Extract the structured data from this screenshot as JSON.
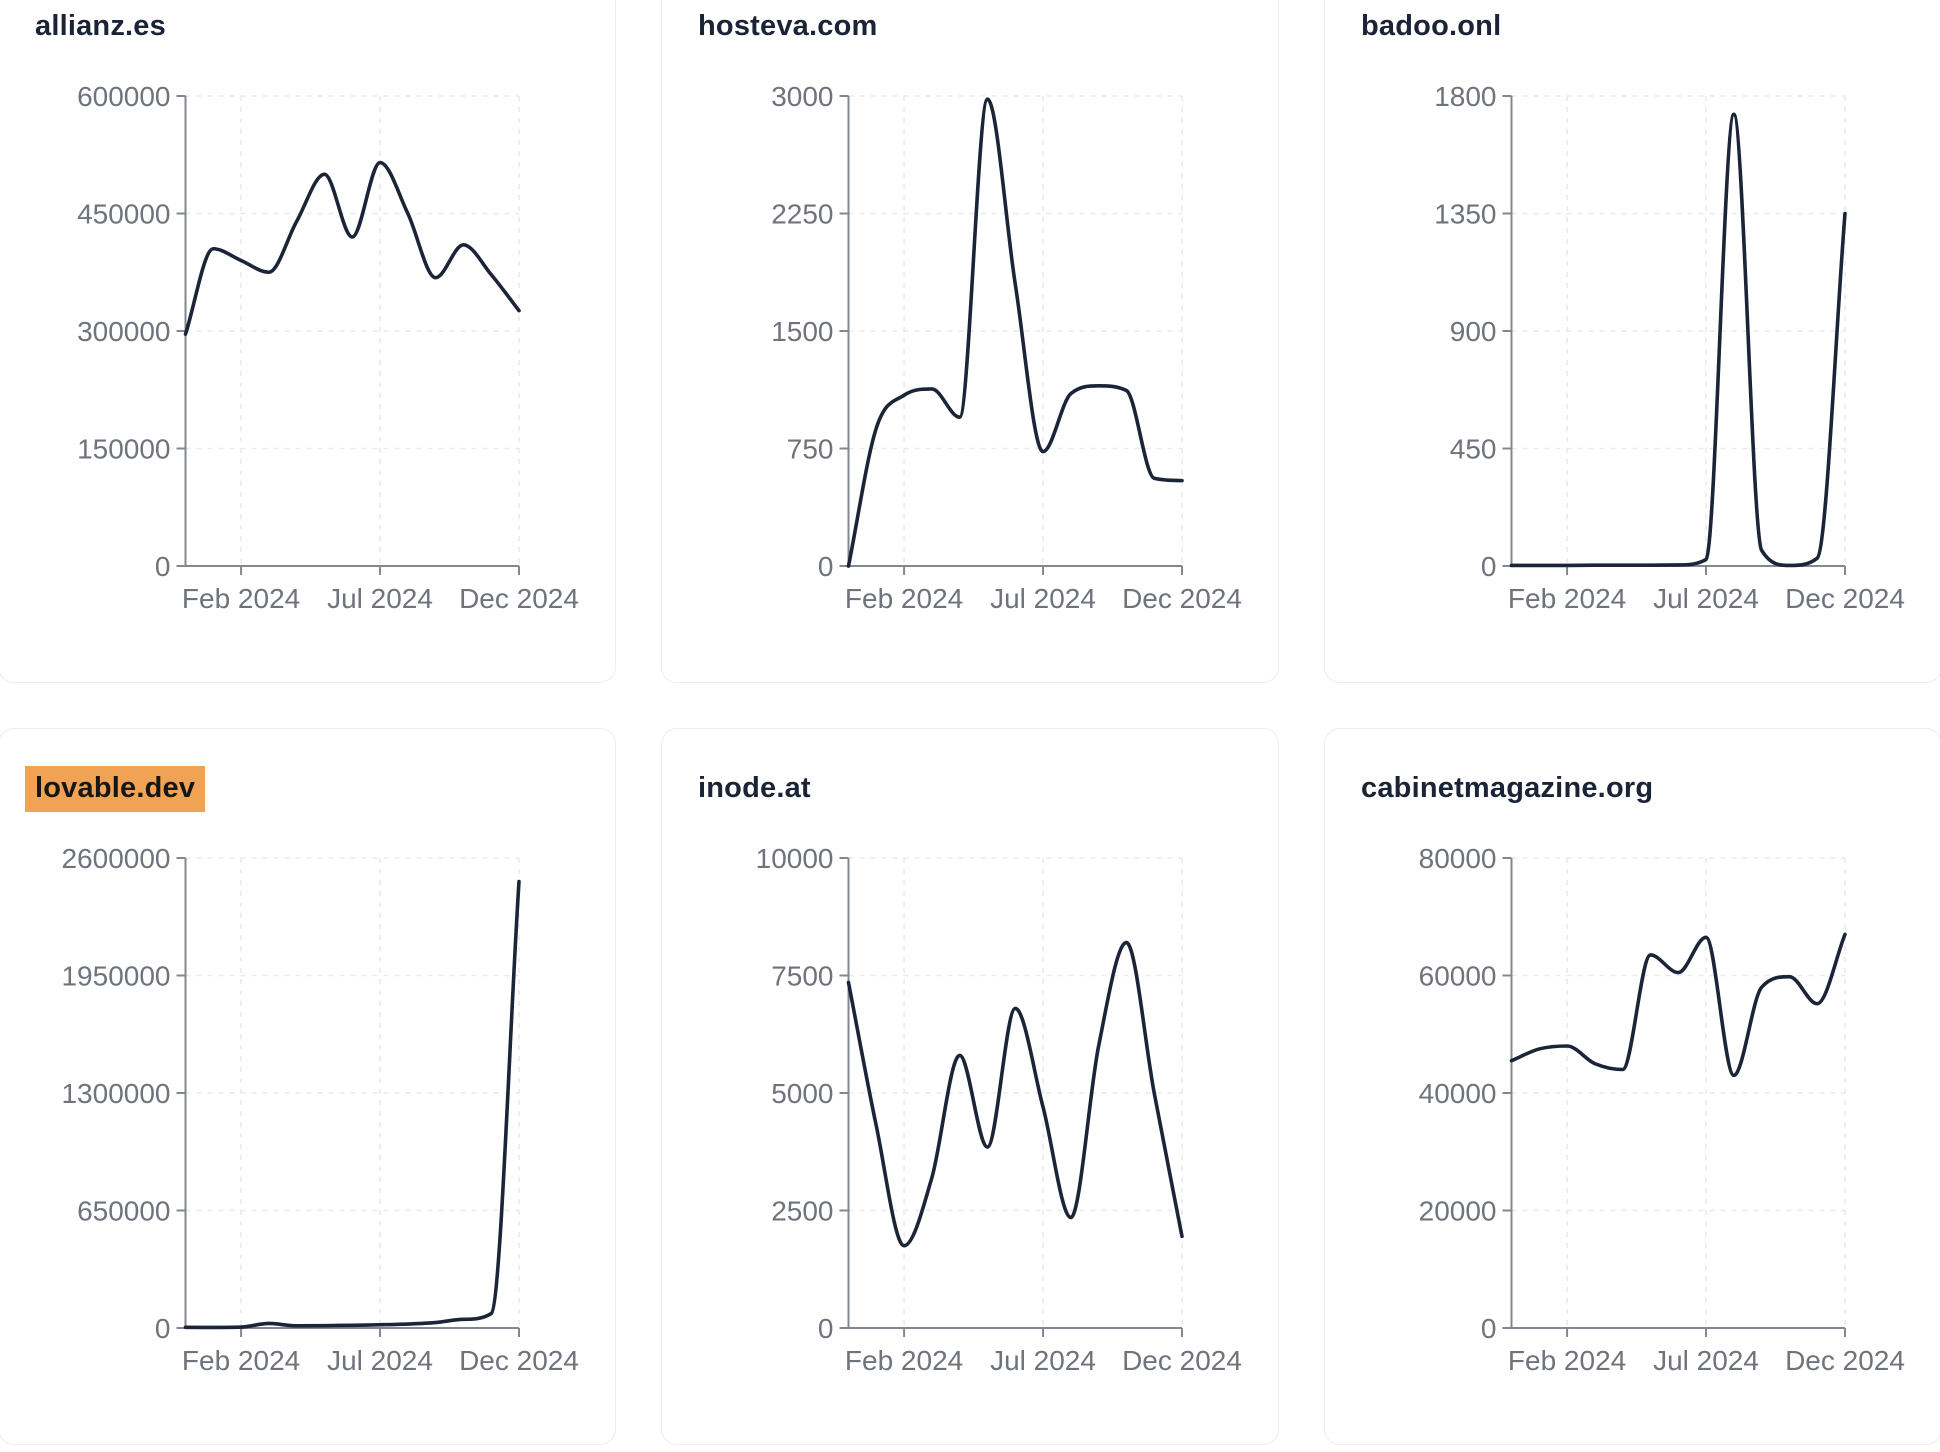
{
  "style": {
    "page_background": "#ffffff",
    "card_background": "#ffffff",
    "card_border_color": "#e9edf4",
    "title_color": "#1b2337",
    "line_color": "#1c2438",
    "tick_label_color": "#6e737c",
    "axis_color": "#83878f",
    "grid_color": "#e9eaef",
    "highlight_color": "#f0a355",
    "highlight_text_color": "#161616"
  },
  "chart_data": [
    {
      "type": "line",
      "title": "allianz.es",
      "title_highlighted": false,
      "x": [
        "Dec 2023",
        "Jan 2024",
        "Feb 2024",
        "Mar 2024",
        "Apr 2024",
        "May 2024",
        "Jun 2024",
        "Jul 2024",
        "Aug 2024",
        "Sep 2024",
        "Oct 2024",
        "Nov 2024",
        "Dec 2024"
      ],
      "values": [
        296000,
        405000,
        390000,
        375000,
        440000,
        500000,
        420000,
        515000,
        450000,
        368000,
        410000,
        372000,
        326000
      ],
      "y_ticks": [
        0,
        150000,
        300000,
        450000,
        600000
      ],
      "ylim": [
        0,
        600000
      ],
      "x_tick_labels": [
        "Feb 2024",
        "Jul 2024",
        "Dec 2024"
      ],
      "x_tick_month_indices": [
        2,
        7,
        12
      ],
      "grid": "dashed",
      "legend": "none"
    },
    {
      "type": "line",
      "title": "hosteva.com",
      "title_highlighted": false,
      "x": [
        "Dec 2023",
        "Jan 2024",
        "Feb 2024",
        "Mar 2024",
        "Apr 2024",
        "May 2024",
        "Jun 2024",
        "Jul 2024",
        "Aug 2024",
        "Sep 2024",
        "Oct 2024",
        "Nov 2024",
        "Dec 2024"
      ],
      "values": [
        0,
        880,
        1090,
        1130,
        950,
        2980,
        1800,
        730,
        1100,
        1150,
        1120,
        560,
        545
      ],
      "y_ticks": [
        0,
        750,
        1500,
        2250,
        3000
      ],
      "ylim": [
        0,
        3000
      ],
      "x_tick_labels": [
        "Feb 2024",
        "Jul 2024",
        "Dec 2024"
      ],
      "x_tick_month_indices": [
        2,
        7,
        12
      ],
      "grid": "dashed",
      "legend": "none"
    },
    {
      "type": "line",
      "title": "badoo.onl",
      "title_highlighted": false,
      "x": [
        "Dec 2023",
        "Jan 2024",
        "Feb 2024",
        "Mar 2024",
        "Apr 2024",
        "May 2024",
        "Jun 2024",
        "Jul 2024",
        "Aug 2024",
        "Sep 2024",
        "Oct 2024",
        "Nov 2024",
        "Dec 2024"
      ],
      "values": [
        2,
        2,
        2,
        3,
        3,
        3,
        4,
        25,
        1730,
        60,
        2,
        30,
        1350
      ],
      "y_ticks": [
        0,
        450,
        900,
        1350,
        1800
      ],
      "ylim": [
        0,
        1800
      ],
      "x_tick_labels": [
        "Feb 2024",
        "Jul 2024",
        "Dec 2024"
      ],
      "x_tick_month_indices": [
        2,
        7,
        12
      ],
      "grid": "dashed",
      "legend": "none"
    },
    {
      "type": "line",
      "title": "lovable.dev",
      "title_highlighted": true,
      "x": [
        "Dec 2023",
        "Jan 2024",
        "Feb 2024",
        "Mar 2024",
        "Apr 2024",
        "May 2024",
        "Jun 2024",
        "Jul 2024",
        "Aug 2024",
        "Sep 2024",
        "Oct 2024",
        "Nov 2024",
        "Dec 2024"
      ],
      "values": [
        4000,
        3000,
        5000,
        25000,
        12000,
        13000,
        15000,
        18000,
        22000,
        30000,
        48000,
        80000,
        2470000
      ],
      "y_ticks": [
        0,
        650000,
        1300000,
        1950000,
        2600000
      ],
      "ylim": [
        0,
        2600000
      ],
      "x_tick_labels": [
        "Feb 2024",
        "Jul 2024",
        "Dec 2024"
      ],
      "x_tick_month_indices": [
        2,
        7,
        12
      ],
      "grid": "dashed",
      "legend": "none"
    },
    {
      "type": "line",
      "title": "inode.at",
      "title_highlighted": false,
      "x": [
        "Dec 2023",
        "Jan 2024",
        "Feb 2024",
        "Mar 2024",
        "Apr 2024",
        "May 2024",
        "Jun 2024",
        "Jul 2024",
        "Aug 2024",
        "Sep 2024",
        "Oct 2024",
        "Nov 2024",
        "Dec 2024"
      ],
      "values": [
        7350,
        4300,
        1750,
        3200,
        5800,
        3850,
        6800,
        4700,
        2350,
        6000,
        8200,
        5000,
        1950
      ],
      "y_ticks": [
        0,
        2500,
        5000,
        7500,
        10000
      ],
      "ylim": [
        0,
        10000
      ],
      "x_tick_labels": [
        "Feb 2024",
        "Jul 2024",
        "Dec 2024"
      ],
      "x_tick_month_indices": [
        2,
        7,
        12
      ],
      "grid": "dashed",
      "legend": "none"
    },
    {
      "type": "line",
      "title": "cabinetmagazine.org",
      "title_highlighted": false,
      "x": [
        "Dec 2023",
        "Jan 2024",
        "Feb 2024",
        "Mar 2024",
        "Apr 2024",
        "May 2024",
        "Jun 2024",
        "Jul 2024",
        "Aug 2024",
        "Sep 2024",
        "Oct 2024",
        "Nov 2024",
        "Dec 2024"
      ],
      "values": [
        45500,
        47500,
        48000,
        45000,
        44000,
        63500,
        60500,
        66500,
        43000,
        58000,
        59800,
        55200,
        67000
      ],
      "y_ticks": [
        0,
        20000,
        40000,
        60000,
        80000
      ],
      "ylim": [
        0,
        80000
      ],
      "x_tick_labels": [
        "Feb 2024",
        "Jul 2024",
        "Dec 2024"
      ],
      "x_tick_month_indices": [
        2,
        7,
        12
      ],
      "grid": "dashed",
      "legend": "none"
    }
  ]
}
